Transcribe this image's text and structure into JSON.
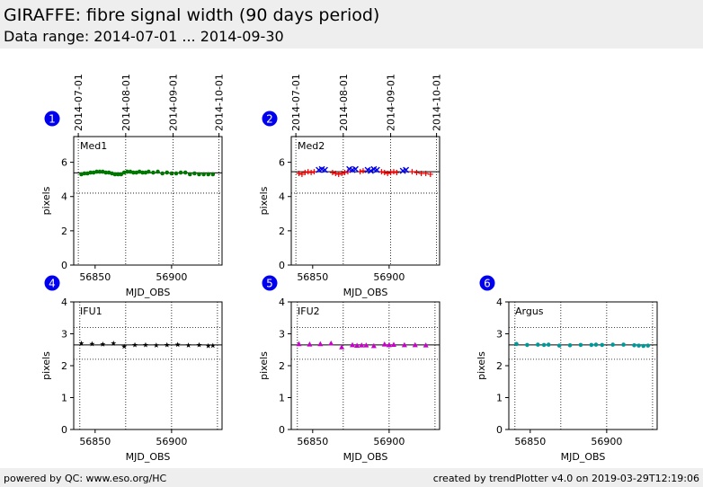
{
  "header": {
    "title": "GIRAFFE: fibre signal width (90 days period)",
    "subtitle": "Data range: 2014-07-01 ... 2014-09-30"
  },
  "footer": {
    "left": "powered by QC: www.eso.org/HC",
    "right": "created by trendPlotter v4.0 on 2019-03-29T12:19:06"
  },
  "colors": {
    "badge": "#0000ee",
    "median": "#000000",
    "green": "#007700",
    "red": "#ee0000",
    "blue": "#0000ee",
    "magenta": "#cc00cc",
    "teal": "#009999"
  },
  "chart_data": [
    {
      "badge": "1",
      "label": "Med1",
      "type": "scatter",
      "xlabel": "MJD_OBS",
      "ylabel": "pixels",
      "xlim": [
        56836,
        56933
      ],
      "ylim": [
        0,
        7.5
      ],
      "xticks": [
        56850,
        56900
      ],
      "yticks": [
        0,
        2,
        4,
        6
      ],
      "date_ticks": [
        {
          "mjd": 56839,
          "label": "2014-07-01"
        },
        {
          "mjd": 56870,
          "label": "2014-08-01"
        },
        {
          "mjd": 56901,
          "label": "2014-09-01"
        },
        {
          "mjd": 56931,
          "label": "2014-10-01"
        }
      ],
      "median": 5.38,
      "lower_limit": 4.2,
      "series": [
        {
          "color": "green",
          "marker": "dot",
          "x": [
            56841,
            56843,
            56845,
            56847,
            56849,
            56851,
            56853,
            56855,
            56857,
            56859,
            56861,
            56863,
            56865,
            56867,
            56869,
            56871,
            56873,
            56875,
            56877,
            56879,
            56881,
            56883,
            56885,
            56888,
            56891,
            56894,
            56897,
            56900,
            56903,
            56906,
            56909,
            56912,
            56915,
            56918,
            56921,
            56924,
            56927
          ],
          "y": [
            5.3,
            5.35,
            5.35,
            5.4,
            5.4,
            5.45,
            5.45,
            5.45,
            5.4,
            5.4,
            5.35,
            5.3,
            5.3,
            5.3,
            5.4,
            5.45,
            5.45,
            5.4,
            5.4,
            5.45,
            5.4,
            5.4,
            5.45,
            5.4,
            5.45,
            5.35,
            5.4,
            5.35,
            5.35,
            5.4,
            5.4,
            5.3,
            5.35,
            5.3,
            5.3,
            5.3,
            5.3
          ]
        }
      ]
    },
    {
      "badge": "2",
      "label": "Med2",
      "type": "scatter",
      "xlabel": "MJD_OBS",
      "ylabel": "pixels",
      "xlim": [
        56836,
        56933
      ],
      "ylim": [
        0,
        7.5
      ],
      "xticks": [
        56850,
        56900
      ],
      "yticks": [
        0,
        2,
        4,
        6
      ],
      "date_ticks": [
        {
          "mjd": 56839,
          "label": "2014-07-01"
        },
        {
          "mjd": 56870,
          "label": "2014-08-01"
        },
        {
          "mjd": 56901,
          "label": "2014-09-01"
        },
        {
          "mjd": 56931,
          "label": "2014-10-01"
        }
      ],
      "median": 5.45,
      "lower_limit": 4.2,
      "series": [
        {
          "color": "red",
          "marker": "plus",
          "x": [
            56841,
            56843,
            56845,
            56847,
            56849,
            56851,
            56863,
            56865,
            56867,
            56869,
            56871,
            56873,
            56881,
            56883,
            56895,
            56897,
            56899,
            56901,
            56903,
            56905,
            56915,
            56918,
            56921,
            56924,
            56927
          ],
          "y": [
            5.35,
            5.3,
            5.4,
            5.45,
            5.4,
            5.45,
            5.4,
            5.35,
            5.3,
            5.35,
            5.4,
            5.45,
            5.45,
            5.5,
            5.45,
            5.4,
            5.35,
            5.4,
            5.45,
            5.4,
            5.45,
            5.4,
            5.35,
            5.35,
            5.3
          ]
        },
        {
          "color": "blue",
          "marker": "x",
          "x": [
            56854,
            56856,
            56858,
            56874,
            56876,
            56878,
            56886,
            56888,
            56890,
            56892,
            56909,
            56911
          ],
          "y": [
            5.55,
            5.6,
            5.55,
            5.6,
            5.55,
            5.6,
            5.55,
            5.5,
            5.6,
            5.55,
            5.5,
            5.55
          ]
        }
      ]
    },
    {
      "badge": "4",
      "label": "IFU1",
      "type": "scatter",
      "xlabel": "MJD_OBS",
      "ylabel": "pixels",
      "xlim": [
        56836,
        56933
      ],
      "ylim": [
        0,
        4
      ],
      "xticks": [
        56850,
        56900
      ],
      "yticks": [
        0,
        1,
        2,
        3,
        4
      ],
      "median": 2.65,
      "upper_limit": 3.2,
      "lower_limit": 2.2,
      "series": [
        {
          "color": "black",
          "marker": "star",
          "x": [
            56841,
            56848,
            56855,
            56862,
            56869,
            56876,
            56883,
            56890,
            56897,
            56904,
            56911,
            56918,
            56924,
            56927
          ],
          "y": [
            2.7,
            2.68,
            2.67,
            2.7,
            2.6,
            2.65,
            2.65,
            2.64,
            2.65,
            2.66,
            2.64,
            2.65,
            2.62,
            2.63
          ]
        }
      ]
    },
    {
      "badge": "5",
      "label": "IFU2",
      "type": "scatter",
      "xlabel": "MJD_OBS",
      "ylabel": "pixels",
      "xlim": [
        56836,
        56933
      ],
      "ylim": [
        0,
        4
      ],
      "xticks": [
        56850,
        56900
      ],
      "yticks": [
        0,
        1,
        2,
        3,
        4
      ],
      "median": 2.65,
      "upper_limit": 3.2,
      "lower_limit": 2.2,
      "series": [
        {
          "color": "magenta",
          "marker": "triangle",
          "x": [
            56841,
            56848,
            56855,
            56862,
            56869,
            56876,
            56879,
            56882,
            56885,
            56890,
            56897,
            56900,
            56903,
            56910,
            56917,
            56924
          ],
          "y": [
            2.68,
            2.67,
            2.68,
            2.7,
            2.58,
            2.65,
            2.63,
            2.64,
            2.64,
            2.62,
            2.67,
            2.65,
            2.66,
            2.65,
            2.65,
            2.64
          ]
        }
      ]
    },
    {
      "badge": "6",
      "label": "Argus",
      "type": "scatter",
      "xlabel": "MJD_OBS",
      "ylabel": "pixels",
      "xlim": [
        56836,
        56933
      ],
      "ylim": [
        0,
        4
      ],
      "xticks": [
        56850,
        56900
      ],
      "yticks": [
        0,
        1,
        2,
        3,
        4
      ],
      "median": 2.65,
      "upper_limit": 3.2,
      "lower_limit": 2.2,
      "series": [
        {
          "color": "teal",
          "marker": "dot",
          "x": [
            56841,
            56848,
            56855,
            56859,
            56862,
            56869,
            56876,
            56883,
            56890,
            56893,
            56897,
            56904,
            56911,
            56918,
            56921,
            56924,
            56927
          ],
          "y": [
            2.68,
            2.65,
            2.66,
            2.65,
            2.66,
            2.63,
            2.64,
            2.65,
            2.65,
            2.66,
            2.65,
            2.66,
            2.66,
            2.64,
            2.63,
            2.62,
            2.63
          ]
        }
      ]
    }
  ]
}
